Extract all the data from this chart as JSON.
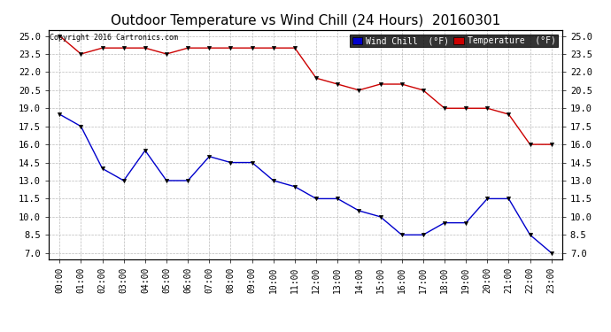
{
  "title": "Outdoor Temperature vs Wind Chill (24 Hours)  20160301",
  "copyright_text": "Copyright 2016 Cartronics.com",
  "x_labels": [
    "00:00",
    "01:00",
    "02:00",
    "03:00",
    "04:00",
    "05:00",
    "06:00",
    "07:00",
    "08:00",
    "09:00",
    "10:00",
    "11:00",
    "12:00",
    "13:00",
    "14:00",
    "15:00",
    "16:00",
    "17:00",
    "18:00",
    "19:00",
    "20:00",
    "21:00",
    "22:00",
    "23:00"
  ],
  "temperature": [
    25.0,
    23.5,
    24.0,
    24.0,
    24.0,
    23.5,
    24.0,
    24.0,
    24.0,
    24.0,
    24.0,
    24.0,
    21.5,
    21.0,
    20.5,
    21.0,
    21.0,
    20.5,
    19.0,
    19.0,
    19.0,
    18.5,
    16.0,
    16.0
  ],
  "wind_chill": [
    18.5,
    17.5,
    14.0,
    13.0,
    15.5,
    13.0,
    13.0,
    15.0,
    14.5,
    14.5,
    13.0,
    12.5,
    11.5,
    11.5,
    10.5,
    10.0,
    8.5,
    8.5,
    9.5,
    9.5,
    11.5,
    11.5,
    8.5,
    7.0
  ],
  "ylim": [
    6.5,
    25.5
  ],
  "yticks": [
    7.0,
    8.5,
    10.0,
    11.5,
    13.0,
    14.5,
    16.0,
    17.5,
    19.0,
    20.5,
    22.0,
    23.5,
    25.0
  ],
  "temp_color": "#cc0000",
  "wind_color": "#0000cc",
  "bg_color": "#ffffff",
  "grid_color": "#bbbbbb",
  "title_fontsize": 11,
  "legend_wind_bg": "#0000cc",
  "legend_temp_bg": "#cc0000",
  "legend_wind_label": "Wind Chill  (°F)",
  "legend_temp_label": "Temperature  (°F)"
}
